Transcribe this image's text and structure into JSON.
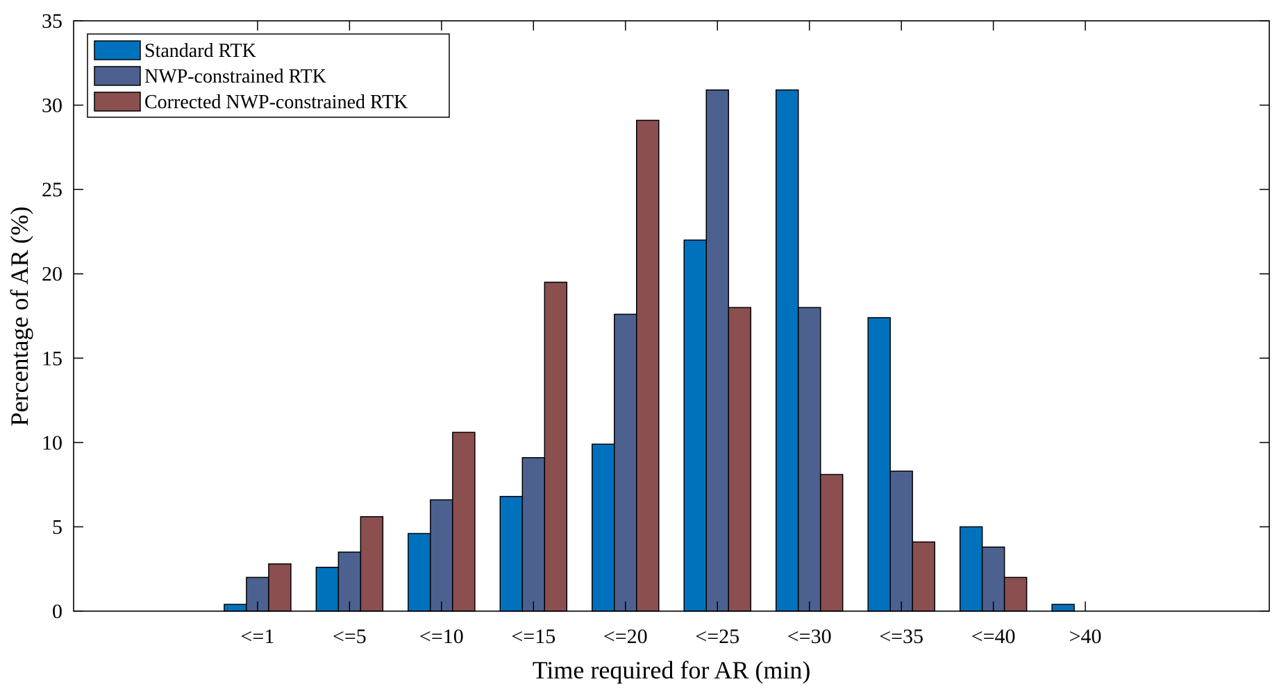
{
  "chart_data": {
    "type": "bar",
    "title": "",
    "xlabel": "Time required for AR (min)",
    "ylabel": "Percentage of AR (%)",
    "ylim": [
      0,
      35
    ],
    "yticks": [
      0,
      5,
      10,
      15,
      20,
      25,
      30,
      35
    ],
    "grid": false,
    "legend_position": "top-left",
    "categories": [
      "<=1",
      "<=5",
      "<=10",
      "<=15",
      "<=20",
      "<=25",
      "<=30",
      "<=35",
      "<=40",
      ">40"
    ],
    "series": [
      {
        "name": "Standard RTK",
        "color": "#0072BD",
        "values": [
          0.4,
          2.6,
          4.6,
          6.8,
          9.9,
          22.0,
          30.9,
          17.4,
          5.0,
          0.4
        ]
      },
      {
        "name": "NWP-constrained RTK",
        "color": "#4C6190",
        "values": [
          2.0,
          3.5,
          6.6,
          9.1,
          17.6,
          30.9,
          18.0,
          8.3,
          3.8,
          0.0
        ]
      },
      {
        "name": "Corrected NWP-constrained RTK",
        "color": "#8B4F4F",
        "values": [
          2.8,
          5.6,
          10.6,
          19.5,
          29.1,
          18.0,
          8.1,
          4.1,
          2.0,
          0.0
        ]
      }
    ]
  }
}
